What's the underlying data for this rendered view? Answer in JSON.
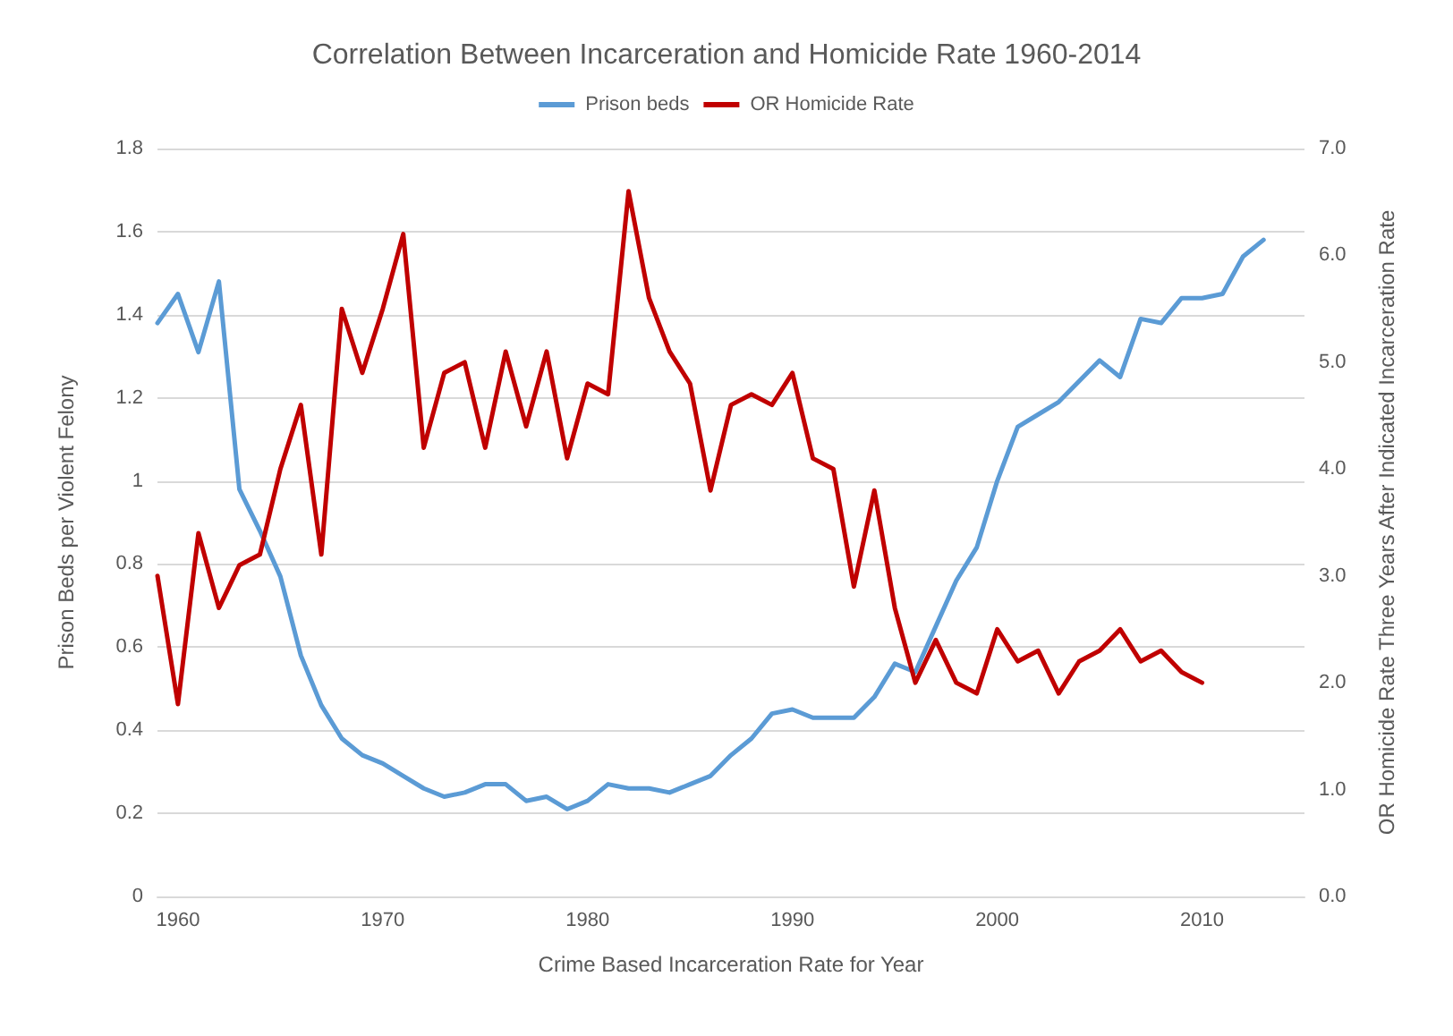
{
  "chart_data": {
    "type": "line",
    "title": "Correlation Between Incarceration and Homicide Rate 1960-2014",
    "xlabel": "Crime Based Incarceration Rate for Year",
    "ylabel": "Prison Beds per Violent Felony",
    "y2label": "OR Homicide Rate Three Years After Indicated Incarceration Rate",
    "xlim": [
      1959,
      2015
    ],
    "xticks": [
      1960,
      1970,
      1980,
      1990,
      2000,
      2010
    ],
    "ylim": [
      0,
      1.8
    ],
    "yticks": [
      {
        "value": 0,
        "label": "0"
      },
      0.2,
      0.4,
      0.6,
      0.8,
      {
        "value": 1,
        "label": "1"
      },
      1.2,
      1.4,
      1.6,
      1.8
    ],
    "y2lim": [
      0,
      7
    ],
    "y2ticks": [
      {
        "value": 0,
        "label": "0.0"
      },
      {
        "value": 1,
        "label": "1.0"
      },
      {
        "value": 2,
        "label": "2.0"
      },
      {
        "value": 3,
        "label": "3.0"
      },
      {
        "value": 4,
        "label": "4.0"
      },
      {
        "value": 5,
        "label": "5.0"
      },
      {
        "value": 6,
        "label": "6.0"
      },
      {
        "value": 7,
        "label": "7.0"
      }
    ],
    "grid": "y",
    "legend": "top",
    "marker": "none",
    "line_style": "solid",
    "series": [
      {
        "name": "Prison beds",
        "color": "#5b9bd5",
        "x": [
          1959,
          1960,
          1961,
          1962,
          1963,
          1964,
          1965,
          1966,
          1967,
          1968,
          1969,
          1970,
          1971,
          1972,
          1973,
          1974,
          1975,
          1976,
          1977,
          1978,
          1979,
          1980,
          1981,
          1982,
          1983,
          1984,
          1985,
          1986,
          1987,
          1988,
          1989,
          1990,
          1991,
          1992,
          1993,
          1994,
          1995,
          1996,
          1997,
          1998,
          1999,
          2000,
          2001,
          2002,
          2003,
          2004,
          2005,
          2006,
          2007,
          2008,
          2009,
          2010,
          2011,
          2012,
          2013
        ],
        "values": [
          1.38,
          1.45,
          1.31,
          1.48,
          0.98,
          0.88,
          0.77,
          0.58,
          0.46,
          0.38,
          0.34,
          0.32,
          0.29,
          0.26,
          0.24,
          0.25,
          0.27,
          0.27,
          0.23,
          0.24,
          0.21,
          0.23,
          0.27,
          0.26,
          0.26,
          0.25,
          0.27,
          0.29,
          0.34,
          0.38,
          0.44,
          0.45,
          0.43,
          0.43,
          0.43,
          0.48,
          0.56,
          0.54,
          0.65,
          0.76,
          0.84,
          1.0,
          1.13,
          1.16,
          1.19,
          1.24,
          1.29,
          1.25,
          1.39,
          1.38,
          1.44,
          1.44,
          1.45,
          1.54,
          1.58
        ]
      },
      {
        "name": "OR Homicide Rate",
        "color": "#c00000",
        "axis": "y2",
        "x": [
          1959,
          1960,
          1961,
          1962,
          1963,
          1964,
          1965,
          1966,
          1967,
          1968,
          1969,
          1970,
          1971,
          1972,
          1973,
          1974,
          1975,
          1976,
          1977,
          1978,
          1979,
          1980,
          1981,
          1982,
          1983,
          1984,
          1985,
          1986,
          1987,
          1988,
          1989,
          1990,
          1991,
          1992,
          1993,
          1994,
          1995,
          1996,
          1997,
          1998,
          1999,
          2000,
          2001,
          2002,
          2003,
          2004,
          2005,
          2006,
          2007,
          2008,
          2009,
          2010
        ],
        "values": [
          3.0,
          1.8,
          3.4,
          2.7,
          3.1,
          3.2,
          4.0,
          4.6,
          3.2,
          5.5,
          4.9,
          5.5,
          6.2,
          4.2,
          4.9,
          5.0,
          4.2,
          5.1,
          4.4,
          5.1,
          4.1,
          4.8,
          4.7,
          6.6,
          5.6,
          5.1,
          4.8,
          3.8,
          4.6,
          4.7,
          4.6,
          4.9,
          4.1,
          4.0,
          2.9,
          3.8,
          2.7,
          2.0,
          2.4,
          2.0,
          1.9,
          2.5,
          2.2,
          2.3,
          1.9,
          2.2,
          2.3,
          2.5,
          2.2,
          2.3,
          2.1,
          2.0
        ]
      }
    ]
  }
}
